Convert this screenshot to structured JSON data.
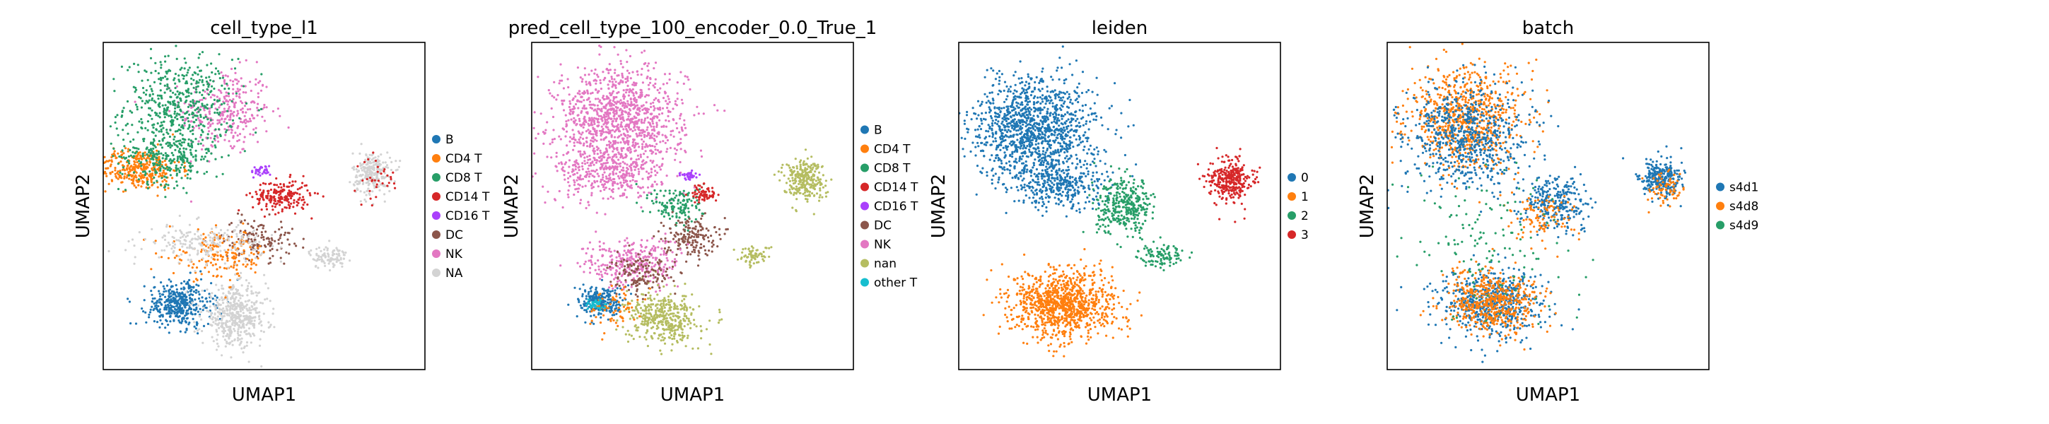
{
  "chart_data": [
    {
      "type": "scatter",
      "title": "cell_type_l1",
      "xlabel": "UMAP1",
      "ylabel": "UMAP2",
      "grid": false,
      "ticks": false,
      "legend": {
        "placement": "right",
        "entries": [
          {
            "label": "B",
            "color": "#1f77b4"
          },
          {
            "label": "CD4 T",
            "color": "#ff7f0e"
          },
          {
            "label": "CD8 T",
            "color": "#279e68"
          },
          {
            "label": "CD14 T",
            "color": "#d62728"
          },
          {
            "label": "CD16 T",
            "color": "#aa40fc"
          },
          {
            "label": "DC",
            "color": "#8c564b"
          },
          {
            "label": "NK",
            "color": "#e377c2"
          },
          {
            "label": "NA",
            "color": "#d3d3d3"
          }
        ]
      },
      "clusters": [
        {
          "category": "NK",
          "center": [
            4.2,
            12.6
          ],
          "spread": [
            1.4,
            1.9
          ],
          "share": 0.09
        },
        {
          "category": "CD8 T",
          "center": [
            2.6,
            12.9
          ],
          "spread": [
            1.7,
            2.1
          ],
          "share": 0.14
        },
        {
          "category": "CD4 T",
          "center": [
            1.2,
            9.8
          ],
          "spread": [
            1.3,
            0.9
          ],
          "share": 0.1
        },
        {
          "category": "CD8 T",
          "center": [
            2.2,
            10.4
          ],
          "spread": [
            1.5,
            1.2
          ],
          "share": 0.08
        },
        {
          "category": "CD14 T",
          "center": [
            6.1,
            8.5
          ],
          "spread": [
            0.9,
            0.7
          ],
          "share": 0.06
        },
        {
          "category": "CD16 T",
          "center": [
            5.4,
            9.7
          ],
          "spread": [
            0.3,
            0.25
          ],
          "share": 0.01
        },
        {
          "category": "DC",
          "center": [
            5.3,
            6.4
          ],
          "spread": [
            1.1,
            0.9
          ],
          "share": 0.04
        },
        {
          "category": "NA",
          "center": [
            7.7,
            5.5
          ],
          "spread": [
            0.6,
            0.5
          ],
          "share": 0.03
        },
        {
          "category": "NA",
          "center": [
            9.2,
            9.6
          ],
          "spread": [
            0.6,
            0.95
          ],
          "share": 0.07
        },
        {
          "category": "CD14 T",
          "center": [
            9.4,
            9.3
          ],
          "spread": [
            0.7,
            1.0
          ],
          "share": 0.01
        },
        {
          "category": "B",
          "center": [
            2.6,
            3.2
          ],
          "spread": [
            1.0,
            1.0
          ],
          "share": 0.12
        },
        {
          "category": "NA",
          "center": [
            4.5,
            2.6
          ],
          "spread": [
            1.0,
            1.3
          ],
          "share": 0.14
        },
        {
          "category": "CD4 T",
          "center": [
            4.0,
            5.6
          ],
          "spread": [
            1.6,
            1.1
          ],
          "share": 0.05
        },
        {
          "category": "NA",
          "center": [
            3.5,
            6.2
          ],
          "spread": [
            1.8,
            0.8
          ],
          "share": 0.06
        }
      ]
    },
    {
      "type": "scatter",
      "title": "pred_cell_type_100_encoder_0.0_True_1",
      "xlabel": "UMAP1",
      "ylabel": "UMAP2",
      "grid": false,
      "ticks": false,
      "legend": {
        "placement": "right",
        "entries": [
          {
            "label": "B",
            "color": "#1f77b4"
          },
          {
            "label": "CD4 T",
            "color": "#ff7f0e"
          },
          {
            "label": "CD8 T",
            "color": "#279e68"
          },
          {
            "label": "CD14 T",
            "color": "#d62728"
          },
          {
            "label": "CD16 T",
            "color": "#aa40fc"
          },
          {
            "label": "DC",
            "color": "#8c564b"
          },
          {
            "label": "NK",
            "color": "#e377c2"
          },
          {
            "label": "nan",
            "color": "#b5bd61"
          },
          {
            "label": "other T",
            "color": "#17becf"
          }
        ]
      },
      "clusters": [
        {
          "category": "NK",
          "center": [
            3.0,
            12.2
          ],
          "spread": [
            2.0,
            2.4
          ],
          "share": 0.33
        },
        {
          "category": "NK",
          "center": [
            2.6,
            9.6
          ],
          "spread": [
            1.6,
            1.3
          ],
          "share": 0.1
        },
        {
          "category": "CD8 T",
          "center": [
            5.0,
            8.0
          ],
          "spread": [
            0.8,
            0.9
          ],
          "share": 0.04
        },
        {
          "category": "CD14 T",
          "center": [
            5.9,
            8.6
          ],
          "spread": [
            0.4,
            0.4
          ],
          "share": 0.02
        },
        {
          "category": "CD16 T",
          "center": [
            5.4,
            9.5
          ],
          "spread": [
            0.25,
            0.2
          ],
          "share": 0.01
        },
        {
          "category": "DC",
          "center": [
            5.4,
            6.5
          ],
          "spread": [
            0.8,
            0.9
          ],
          "share": 0.05
        },
        {
          "category": "nan",
          "center": [
            9.3,
            9.3
          ],
          "spread": [
            0.65,
            0.9
          ],
          "share": 0.08
        },
        {
          "category": "nan",
          "center": [
            7.6,
            5.6
          ],
          "spread": [
            0.5,
            0.4
          ],
          "share": 0.02
        },
        {
          "category": "NK",
          "center": [
            3.4,
            5.2
          ],
          "spread": [
            1.5,
            1.1
          ],
          "share": 0.09
        },
        {
          "category": "B",
          "center": [
            2.4,
            3.3
          ],
          "spread": [
            0.7,
            0.7
          ],
          "share": 0.07
        },
        {
          "category": "nan",
          "center": [
            4.5,
            2.5
          ],
          "spread": [
            1.1,
            1.1
          ],
          "share": 0.12
        },
        {
          "category": "DC",
          "center": [
            3.8,
            4.6
          ],
          "spread": [
            1.0,
            0.9
          ],
          "share": 0.04
        },
        {
          "category": "CD4 T",
          "center": [
            2.8,
            3.0
          ],
          "spread": [
            0.8,
            0.9
          ],
          "share": 0.02
        },
        {
          "category": "other T",
          "center": [
            2.2,
            3.2
          ],
          "spread": [
            0.3,
            0.3
          ],
          "share": 0.01
        }
      ]
    },
    {
      "type": "scatter",
      "title": "leiden",
      "xlabel": "UMAP1",
      "ylabel": "UMAP2",
      "grid": false,
      "ticks": false,
      "legend": {
        "placement": "right",
        "entries": [
          {
            "label": "0",
            "color": "#1f77b4"
          },
          {
            "label": "1",
            "color": "#ff7f0e"
          },
          {
            "label": "2",
            "color": "#279e68"
          },
          {
            "label": "3",
            "color": "#d62728"
          }
        ]
      },
      "clusters": [
        {
          "category": "0",
          "center": [
            2.6,
            11.8
          ],
          "spread": [
            1.9,
            2.3
          ],
          "share": 0.36
        },
        {
          "category": "0",
          "center": [
            3.4,
            9.0
          ],
          "spread": [
            1.5,
            1.1
          ],
          "share": 0.1
        },
        {
          "category": "2",
          "center": [
            5.7,
            8.0
          ],
          "spread": [
            0.9,
            1.2
          ],
          "share": 0.1
        },
        {
          "category": "2",
          "center": [
            6.9,
            5.6
          ],
          "spread": [
            0.7,
            0.5
          ],
          "share": 0.03
        },
        {
          "category": "1",
          "center": [
            3.6,
            3.2
          ],
          "spread": [
            1.6,
            1.5
          ],
          "share": 0.3
        },
        {
          "category": "3",
          "center": [
            9.3,
            9.3
          ],
          "spread": [
            0.65,
            0.95
          ],
          "share": 0.09
        }
      ]
    },
    {
      "type": "scatter",
      "title": "batch",
      "xlabel": "UMAP1",
      "ylabel": "UMAP2",
      "grid": false,
      "ticks": false,
      "legend": {
        "placement": "right",
        "entries": [
          {
            "label": "s4d1",
            "color": "#1f77b4"
          },
          {
            "label": "s4d8",
            "color": "#ff7f0e"
          },
          {
            "label": "s4d9",
            "color": "#279e68"
          }
        ]
      },
      "clusters": [
        {
          "category": "s4d8",
          "center": [
            2.7,
            12.3
          ],
          "spread": [
            1.8,
            2.2
          ],
          "share": 0.22
        },
        {
          "category": "s4d1",
          "center": [
            2.7,
            11.4
          ],
          "spread": [
            1.9,
            2.3
          ],
          "share": 0.2
        },
        {
          "category": "s4d1",
          "center": [
            5.8,
            8.2
          ],
          "spread": [
            1.0,
            1.2
          ],
          "share": 0.08
        },
        {
          "category": "s4d8",
          "center": [
            5.4,
            7.4
          ],
          "spread": [
            1.0,
            1.1
          ],
          "share": 0.03
        },
        {
          "category": "s4d1",
          "center": [
            9.3,
            9.3
          ],
          "spread": [
            0.65,
            0.9
          ],
          "share": 0.08
        },
        {
          "category": "s4d8",
          "center": [
            9.5,
            8.8
          ],
          "spread": [
            0.55,
            0.7
          ],
          "share": 0.02
        },
        {
          "category": "s4d1",
          "center": [
            3.6,
            3.2
          ],
          "spread": [
            1.6,
            1.5
          ],
          "share": 0.18
        },
        {
          "category": "s4d8",
          "center": [
            3.6,
            3.3
          ],
          "spread": [
            1.5,
            1.4
          ],
          "share": 0.15
        },
        {
          "category": "s4d9",
          "center": [
            3.5,
            6.0
          ],
          "spread": [
            2.5,
            3.2
          ],
          "share": 0.04
        }
      ]
    }
  ]
}
